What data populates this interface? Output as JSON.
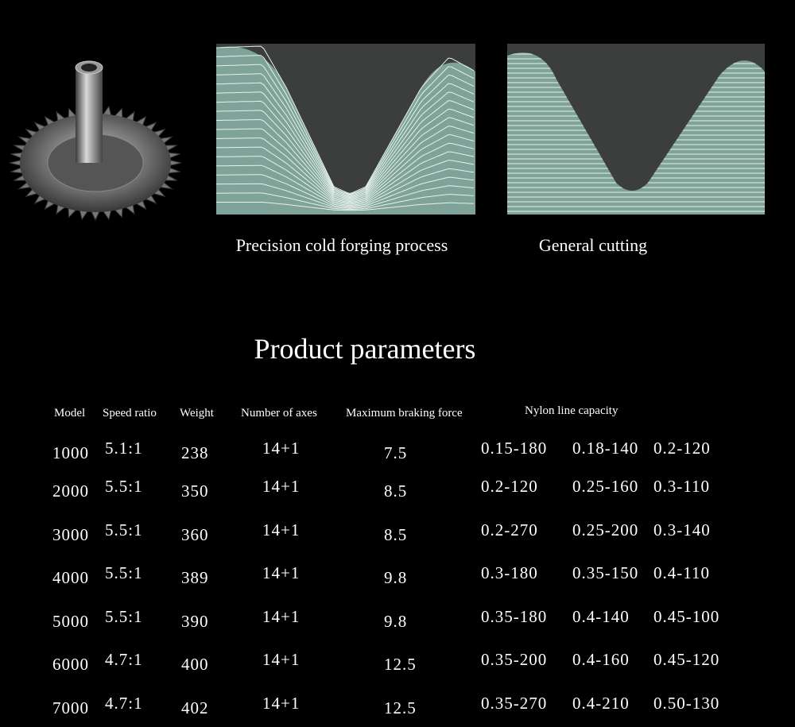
{
  "captions": [
    "Precision cold forging process",
    "General cutting"
  ],
  "title": "Product parameters",
  "table": {
    "headers": [
      "Model",
      "Speed ratio",
      "Weight",
      "Number of axes",
      "Maximum braking force",
      "Nylon line capacity"
    ],
    "rows": [
      [
        "1000",
        "5.1:1",
        "238",
        "14+1",
        "7.5",
        "0.15-180",
        "0.18-140",
        "0.2-120"
      ],
      [
        "2000",
        "5.5:1",
        "350",
        "14+1",
        "8.5",
        "0.2-120",
        "0.25-160",
        "0.3-110"
      ],
      [
        "3000",
        "5.5:1",
        "360",
        "14+1",
        "8.5",
        "0.2-270",
        "0.25-200",
        "0.3-140"
      ],
      [
        "4000",
        "5.5:1",
        "389",
        "14+1",
        "9.8",
        "0.3-180",
        "0.35-150",
        "0.4-110"
      ],
      [
        "5000",
        "5.5:1",
        "390",
        "14+1",
        "9.8",
        "0.35-180",
        "0.4-140",
        "0.45-100"
      ],
      [
        "6000",
        "4.7:1",
        "400",
        "14+1",
        "12.5",
        "0.35-200",
        "0.4-160",
        "0.45-120"
      ],
      [
        "7000",
        "4.7:1",
        "402",
        "14+1",
        "12.5",
        "0.35-270",
        "0.4-210",
        "0.50-130"
      ]
    ]
  }
}
